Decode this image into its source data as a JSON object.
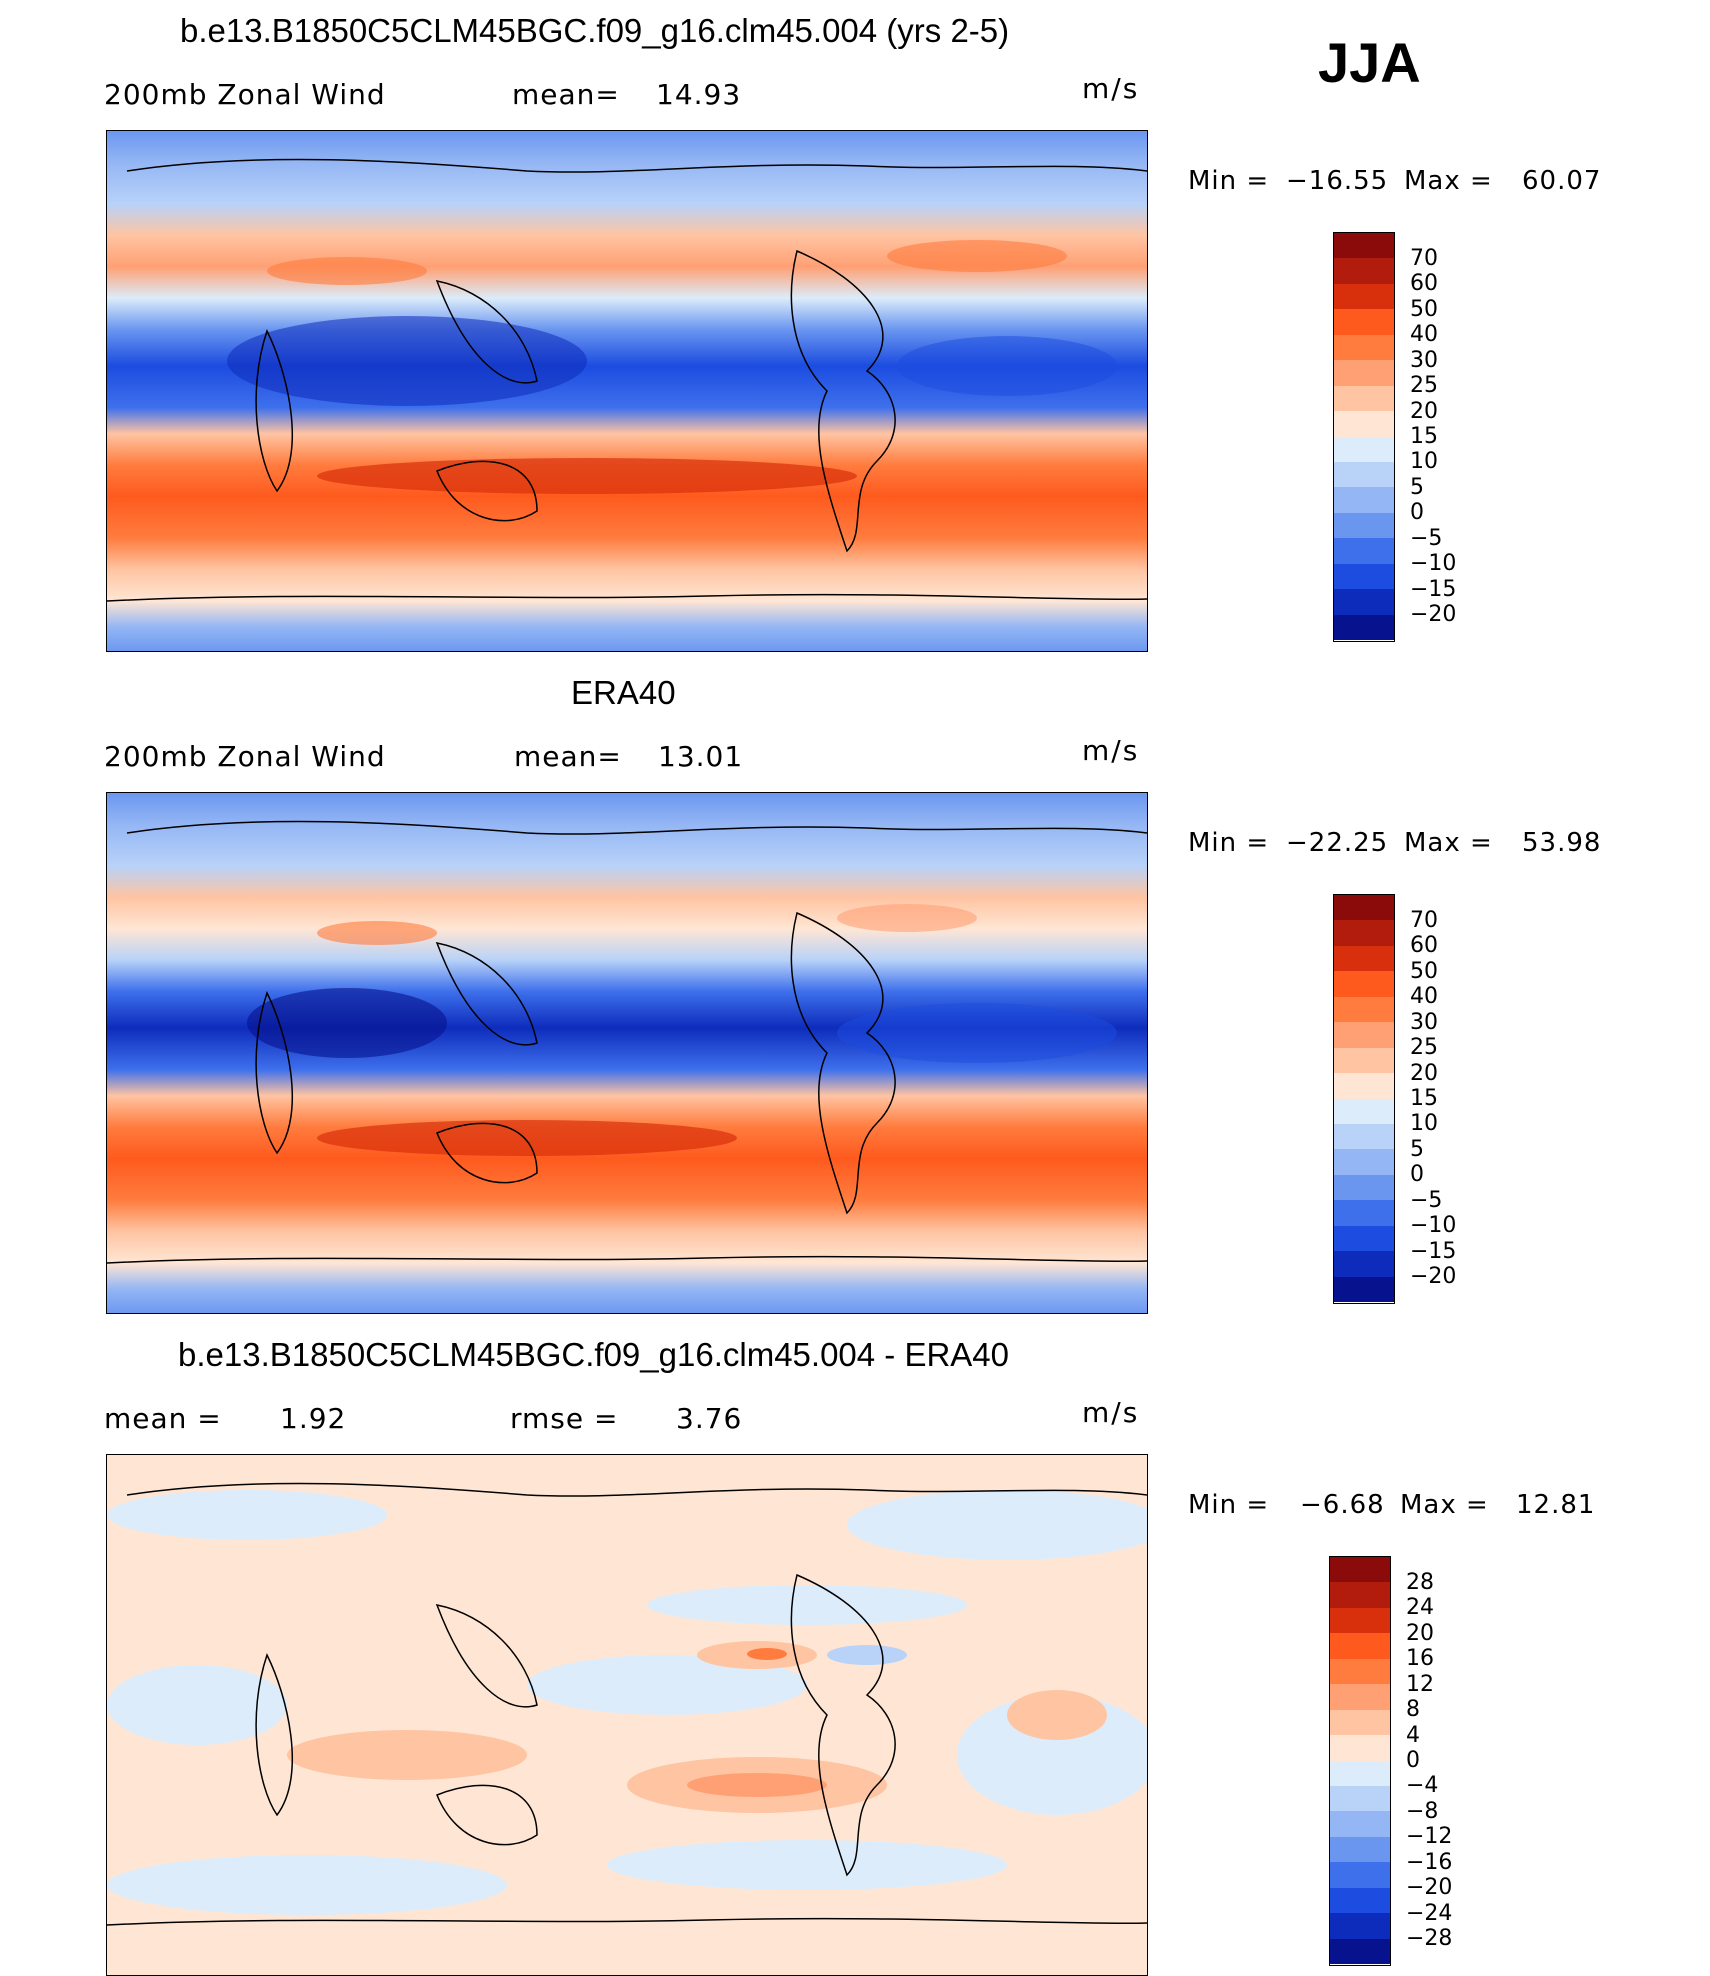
{
  "season": "JJA",
  "panels": [
    {
      "title": "b.e13.B1850C5CLM45BGC.f09_g16.clm45.004 (yrs 2-5)",
      "left_label": "200mb Zonal Wind",
      "stat_label": "mean=",
      "stat_value": "14.93",
      "units": "m/s",
      "min_label": "Min =",
      "min_value": "−16.55",
      "max_label": "Max =",
      "max_value": "60.07"
    },
    {
      "title": "ERA40",
      "left_label": "200mb Zonal Wind",
      "stat_label": "mean=",
      "stat_value": "13.01",
      "units": "m/s",
      "min_label": "Min =",
      "min_value": "−22.25",
      "max_label": "Max =",
      "max_value": "53.98"
    },
    {
      "title": "b.e13.B1850C5CLM45BGC.f09_g16.clm45.004 - ERA40",
      "left_label": "mean =",
      "left_value": "1.92",
      "stat_label": "rmse =",
      "stat_value": "3.76",
      "units": "m/s",
      "min_label": "Min =",
      "min_value": "−6.68",
      "max_label": "Max =",
      "max_value": "12.81"
    }
  ],
  "colorbars": {
    "wind": {
      "colors": [
        "#8b0a0a",
        "#b21c0c",
        "#d8300c",
        "#ff5a1e",
        "#ff7c3e",
        "#ffa074",
        "#ffc4a2",
        "#ffe6d4",
        "#dcecfa",
        "#b8d2f8",
        "#94b6f4",
        "#6a96f0",
        "#3e70ec",
        "#1c4ce0",
        "#0e2cbc",
        "#06128e"
      ],
      "labels": [
        "70",
        "60",
        "50",
        "40",
        "30",
        "25",
        "20",
        "15",
        "10",
        "5",
        "0",
        "−5",
        "−10",
        "−15",
        "−20"
      ]
    },
    "diff": {
      "colors": [
        "#8b0a0a",
        "#b21c0c",
        "#d8300c",
        "#ff5a1e",
        "#ff7c3e",
        "#ffa074",
        "#ffc4a2",
        "#ffe6d4",
        "#dcecfa",
        "#b8d2f8",
        "#94b6f4",
        "#6a96f0",
        "#3e70ec",
        "#1c4ce0",
        "#0e2cbc",
        "#06128e"
      ],
      "labels": [
        "28",
        "24",
        "20",
        "16",
        "12",
        "8",
        "4",
        "0",
        "−4",
        "−8",
        "−12",
        "−16",
        "−20",
        "−24",
        "−28"
      ]
    }
  },
  "chart_data": [
    {
      "type": "heatmap",
      "title": "b.e13.B1850C5CLM45BGC.f09_g16.clm45.004 (yrs 2-5)",
      "variable": "200mb Zonal Wind",
      "units": "m/s",
      "mean": 14.93,
      "min": -16.55,
      "max": 60.07,
      "levels": [
        -20,
        -15,
        -10,
        -5,
        0,
        5,
        10,
        15,
        20,
        25,
        30,
        40,
        50,
        60,
        70
      ],
      "bands": [
        {
          "lat": 85,
          "value": 8
        },
        {
          "lat": 65,
          "value": 10
        },
        {
          "lat": 45,
          "value": 22
        },
        {
          "lat": 35,
          "value": 12
        },
        {
          "lat": 15,
          "value": -15
        },
        {
          "lat": 5,
          "value": -10
        },
        {
          "lat": -10,
          "value": 25
        },
        {
          "lat": -28,
          "value": 45
        },
        {
          "lat": -45,
          "value": 20
        },
        {
          "lat": -65,
          "value": 15
        },
        {
          "lat": -85,
          "value": 5
        }
      ]
    },
    {
      "type": "heatmap",
      "title": "ERA40",
      "variable": "200mb Zonal Wind",
      "units": "m/s",
      "mean": 13.01,
      "min": -22.25,
      "max": 53.98,
      "levels": [
        -20,
        -15,
        -10,
        -5,
        0,
        5,
        10,
        15,
        20,
        25,
        30,
        40,
        50,
        60,
        70
      ],
      "bands": [
        {
          "lat": 85,
          "value": 8
        },
        {
          "lat": 65,
          "value": 8
        },
        {
          "lat": 45,
          "value": 22
        },
        {
          "lat": 35,
          "value": 12
        },
        {
          "lat": 15,
          "value": -15
        },
        {
          "lat": 5,
          "value": -10
        },
        {
          "lat": -10,
          "value": 25
        },
        {
          "lat": -28,
          "value": 40
        },
        {
          "lat": -45,
          "value": 25
        },
        {
          "lat": -65,
          "value": 15
        },
        {
          "lat": -85,
          "value": 5
        }
      ]
    },
    {
      "type": "heatmap",
      "title": "b.e13.B1850C5CLM45BGC.f09_g16.clm45.004 - ERA40",
      "units": "m/s",
      "mean": 1.92,
      "rmse": 3.76,
      "min": -6.68,
      "max": 12.81,
      "levels": [
        -28,
        -24,
        -20,
        -16,
        -12,
        -8,
        -4,
        0,
        4,
        8,
        12,
        16,
        20,
        24,
        28
      ],
      "bands": [
        {
          "lat": 85,
          "value": 2
        },
        {
          "lat": 65,
          "value": -2
        },
        {
          "lat": 45,
          "value": 3
        },
        {
          "lat": 20,
          "value": 4
        },
        {
          "lat": 0,
          "value": 1
        },
        {
          "lat": -20,
          "value": 5
        },
        {
          "lat": -40,
          "value": 1
        },
        {
          "lat": -60,
          "value": 2
        },
        {
          "lat": -85,
          "value": -2
        }
      ]
    }
  ]
}
